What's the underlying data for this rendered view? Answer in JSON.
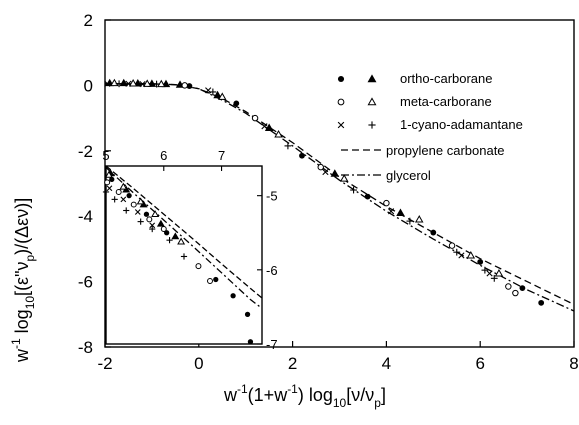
{
  "chart_data": {
    "type": "scatter",
    "xlabel": {
      "pre": "w",
      "sup1": "-1",
      "mid1": "(1+w",
      "sup2": "-1",
      "mid2": ") log",
      "sub1": "10",
      "post": "[ν/ν",
      "sub2": "p",
      "end": "]"
    },
    "ylabel": {
      "pre": "w",
      "sup1": "-1",
      "mid1": " log",
      "sub1": "10",
      "mid2": "[(ε\"ν",
      "sub2": "p",
      "end": ")/(Δεν)]"
    },
    "xlim": [
      -2,
      8
    ],
    "ylim": [
      -8,
      2
    ],
    "x_ticks": [
      "-2",
      "0",
      "2",
      "4",
      "6",
      "8"
    ],
    "y_ticks": [
      "2",
      "0",
      "-2",
      "-4",
      "-6",
      "-8"
    ],
    "series": [
      {
        "name": "ortho-carborane",
        "marker": "filled-circle",
        "pair": 0,
        "points": [
          [
            -0.2,
            -0.02
          ],
          [
            0.8,
            -0.55
          ],
          [
            2.2,
            -2.15
          ],
          [
            3.6,
            -3.4
          ],
          [
            5.0,
            -4.5
          ],
          [
            6.0,
            -5.4
          ],
          [
            6.9,
            -6.2
          ],
          [
            7.3,
            -6.65
          ]
        ]
      },
      {
        "name": "",
        "marker": "filled-triangle",
        "pair": 0,
        "points": [
          [
            -1.9,
            0.07
          ],
          [
            -1.6,
            0.07
          ],
          [
            -1.3,
            0.06
          ],
          [
            -1.0,
            0.05
          ],
          [
            -0.7,
            0.04
          ],
          [
            -0.4,
            0.02
          ],
          [
            0.4,
            -0.3
          ],
          [
            1.5,
            -1.3
          ],
          [
            2.9,
            -2.7
          ],
          [
            4.3,
            -3.9
          ]
        ]
      },
      {
        "name": "meta-carborane",
        "marker": "open-circle",
        "pair": 1,
        "points": [
          [
            -0.3,
            0.0
          ],
          [
            1.2,
            -1.0
          ],
          [
            2.6,
            -2.5
          ],
          [
            4.0,
            -3.6
          ],
          [
            5.4,
            -4.9
          ],
          [
            6.6,
            -6.15
          ],
          [
            6.75,
            -6.35
          ]
        ]
      },
      {
        "name": "",
        "marker": "open-triangle",
        "pair": 1,
        "points": [
          [
            -1.8,
            0.07
          ],
          [
            -1.4,
            0.06
          ],
          [
            -1.1,
            0.05
          ],
          [
            -0.8,
            0.04
          ],
          [
            0.5,
            -0.35
          ],
          [
            1.7,
            -1.5
          ],
          [
            3.1,
            -2.85
          ],
          [
            4.7,
            -4.1
          ],
          [
            5.8,
            -5.2
          ],
          [
            6.4,
            -5.75
          ]
        ]
      },
      {
        "name": "1-cyano-adamantane",
        "marker": "cross-x",
        "pair": 2,
        "points": [
          [
            -1.95,
            0.05
          ],
          [
            -1.5,
            0.05
          ],
          [
            -1.2,
            0.04
          ],
          [
            0.2,
            -0.15
          ],
          [
            1.4,
            -1.25
          ],
          [
            2.7,
            -2.65
          ],
          [
            4.1,
            -3.85
          ],
          [
            5.6,
            -5.2
          ],
          [
            6.2,
            -5.75
          ]
        ]
      },
      {
        "name": "",
        "marker": "plus",
        "pair": 2,
        "points": [
          [
            -1.7,
            0.05
          ],
          [
            -0.9,
            0.04
          ],
          [
            0.3,
            -0.2
          ],
          [
            1.9,
            -1.85
          ],
          [
            3.3,
            -3.2
          ],
          [
            4.5,
            -4.15
          ],
          [
            5.5,
            -5.1
          ],
          [
            6.1,
            -5.65
          ],
          [
            6.3,
            -5.9
          ]
        ]
      },
      {
        "name": "propylene carbonate",
        "marker": "dashed-line",
        "points": [
          [
            -2,
            0.05
          ],
          [
            -1,
            0.05
          ],
          [
            -0.5,
            0.02
          ],
          [
            0,
            -0.1
          ],
          [
            0.5,
            -0.4
          ],
          [
            1,
            -0.8
          ],
          [
            2,
            -1.75
          ],
          [
            3,
            -2.8
          ],
          [
            4,
            -3.7
          ],
          [
            5,
            -4.5
          ],
          [
            6,
            -5.3
          ],
          [
            7,
            -6.0
          ],
          [
            8,
            -6.7
          ]
        ]
      },
      {
        "name": "glycerol",
        "marker": "dashdot-line",
        "points": [
          [
            -2,
            0.05
          ],
          [
            -1,
            0.05
          ],
          [
            -0.5,
            0.02
          ],
          [
            0,
            -0.1
          ],
          [
            0.5,
            -0.45
          ],
          [
            1,
            -0.85
          ],
          [
            2,
            -1.85
          ],
          [
            3,
            -2.9
          ],
          [
            4,
            -3.85
          ],
          [
            5,
            -4.7
          ],
          [
            6,
            -5.5
          ],
          [
            7,
            -6.25
          ],
          [
            8,
            -6.9
          ]
        ]
      }
    ],
    "inset": {
      "xlim": [
        5,
        7.7
      ],
      "ylim": [
        -7,
        -4.6
      ],
      "x_ticks": [
        "5",
        "6",
        "7"
      ],
      "y_ticks": [
        "-5",
        "-6",
        "-7"
      ],
      "curves": [
        {
          "name": "propylene carbonate",
          "style": "dashed",
          "points": [
            [
              5.0,
              -4.6
            ],
            [
              5.5,
              -4.92
            ],
            [
              6.0,
              -5.25
            ],
            [
              6.5,
              -5.58
            ],
            [
              7.0,
              -5.92
            ],
            [
              7.5,
              -6.25
            ],
            [
              7.7,
              -6.38
            ]
          ]
        },
        {
          "name": "glycerol",
          "style": "dashdot",
          "points": [
            [
              5.0,
              -4.62
            ],
            [
              5.5,
              -4.98
            ],
            [
              6.0,
              -5.33
            ],
            [
              6.5,
              -5.68
            ],
            [
              7.0,
              -6.04
            ],
            [
              7.5,
              -6.4
            ],
            [
              7.7,
              -6.52
            ]
          ]
        }
      ],
      "points": [
        {
          "marker": "filled-triangle",
          "xy": [
            [
              5.08,
              -4.7
            ],
            [
              5.35,
              -4.92
            ],
            [
              5.65,
              -5.12
            ],
            [
              5.95,
              -5.38
            ],
            [
              6.2,
              -5.55
            ]
          ]
        },
        {
          "marker": "filled-circle",
          "xy": [
            [
              5.1,
              -4.78
            ],
            [
              5.4,
              -5.0
            ],
            [
              5.7,
              -5.25
            ],
            [
              6.05,
              -5.5
            ],
            [
              6.9,
              -6.13
            ],
            [
              7.2,
              -6.35
            ],
            [
              7.45,
              -6.6
            ],
            [
              7.5,
              -6.97
            ]
          ]
        },
        {
          "marker": "open-triangle",
          "xy": [
            [
              5.05,
              -4.72
            ],
            [
              5.3,
              -4.88
            ],
            [
              5.6,
              -5.08
            ],
            [
              5.85,
              -5.25
            ],
            [
              6.3,
              -5.62
            ]
          ]
        },
        {
          "marker": "open-circle",
          "xy": [
            [
              5.02,
              -4.82
            ],
            [
              5.22,
              -4.95
            ],
            [
              5.48,
              -5.12
            ],
            [
              5.75,
              -5.32
            ],
            [
              6.0,
              -5.45
            ],
            [
              6.6,
              -5.95
            ],
            [
              6.8,
              -6.15
            ]
          ]
        },
        {
          "marker": "cross-x",
          "xy": [
            [
              5.06,
              -4.9
            ],
            [
              5.3,
              -5.05
            ],
            [
              5.55,
              -5.22
            ],
            [
              5.8,
              -5.4
            ]
          ]
        },
        {
          "marker": "plus",
          "xy": [
            [
              5.0,
              -4.95
            ],
            [
              5.15,
              -5.05
            ],
            [
              5.35,
              -5.2
            ],
            [
              5.6,
              -5.35
            ],
            [
              5.8,
              -5.45
            ],
            [
              6.1,
              -5.6
            ],
            [
              6.35,
              -5.82
            ]
          ]
        }
      ]
    }
  }
}
